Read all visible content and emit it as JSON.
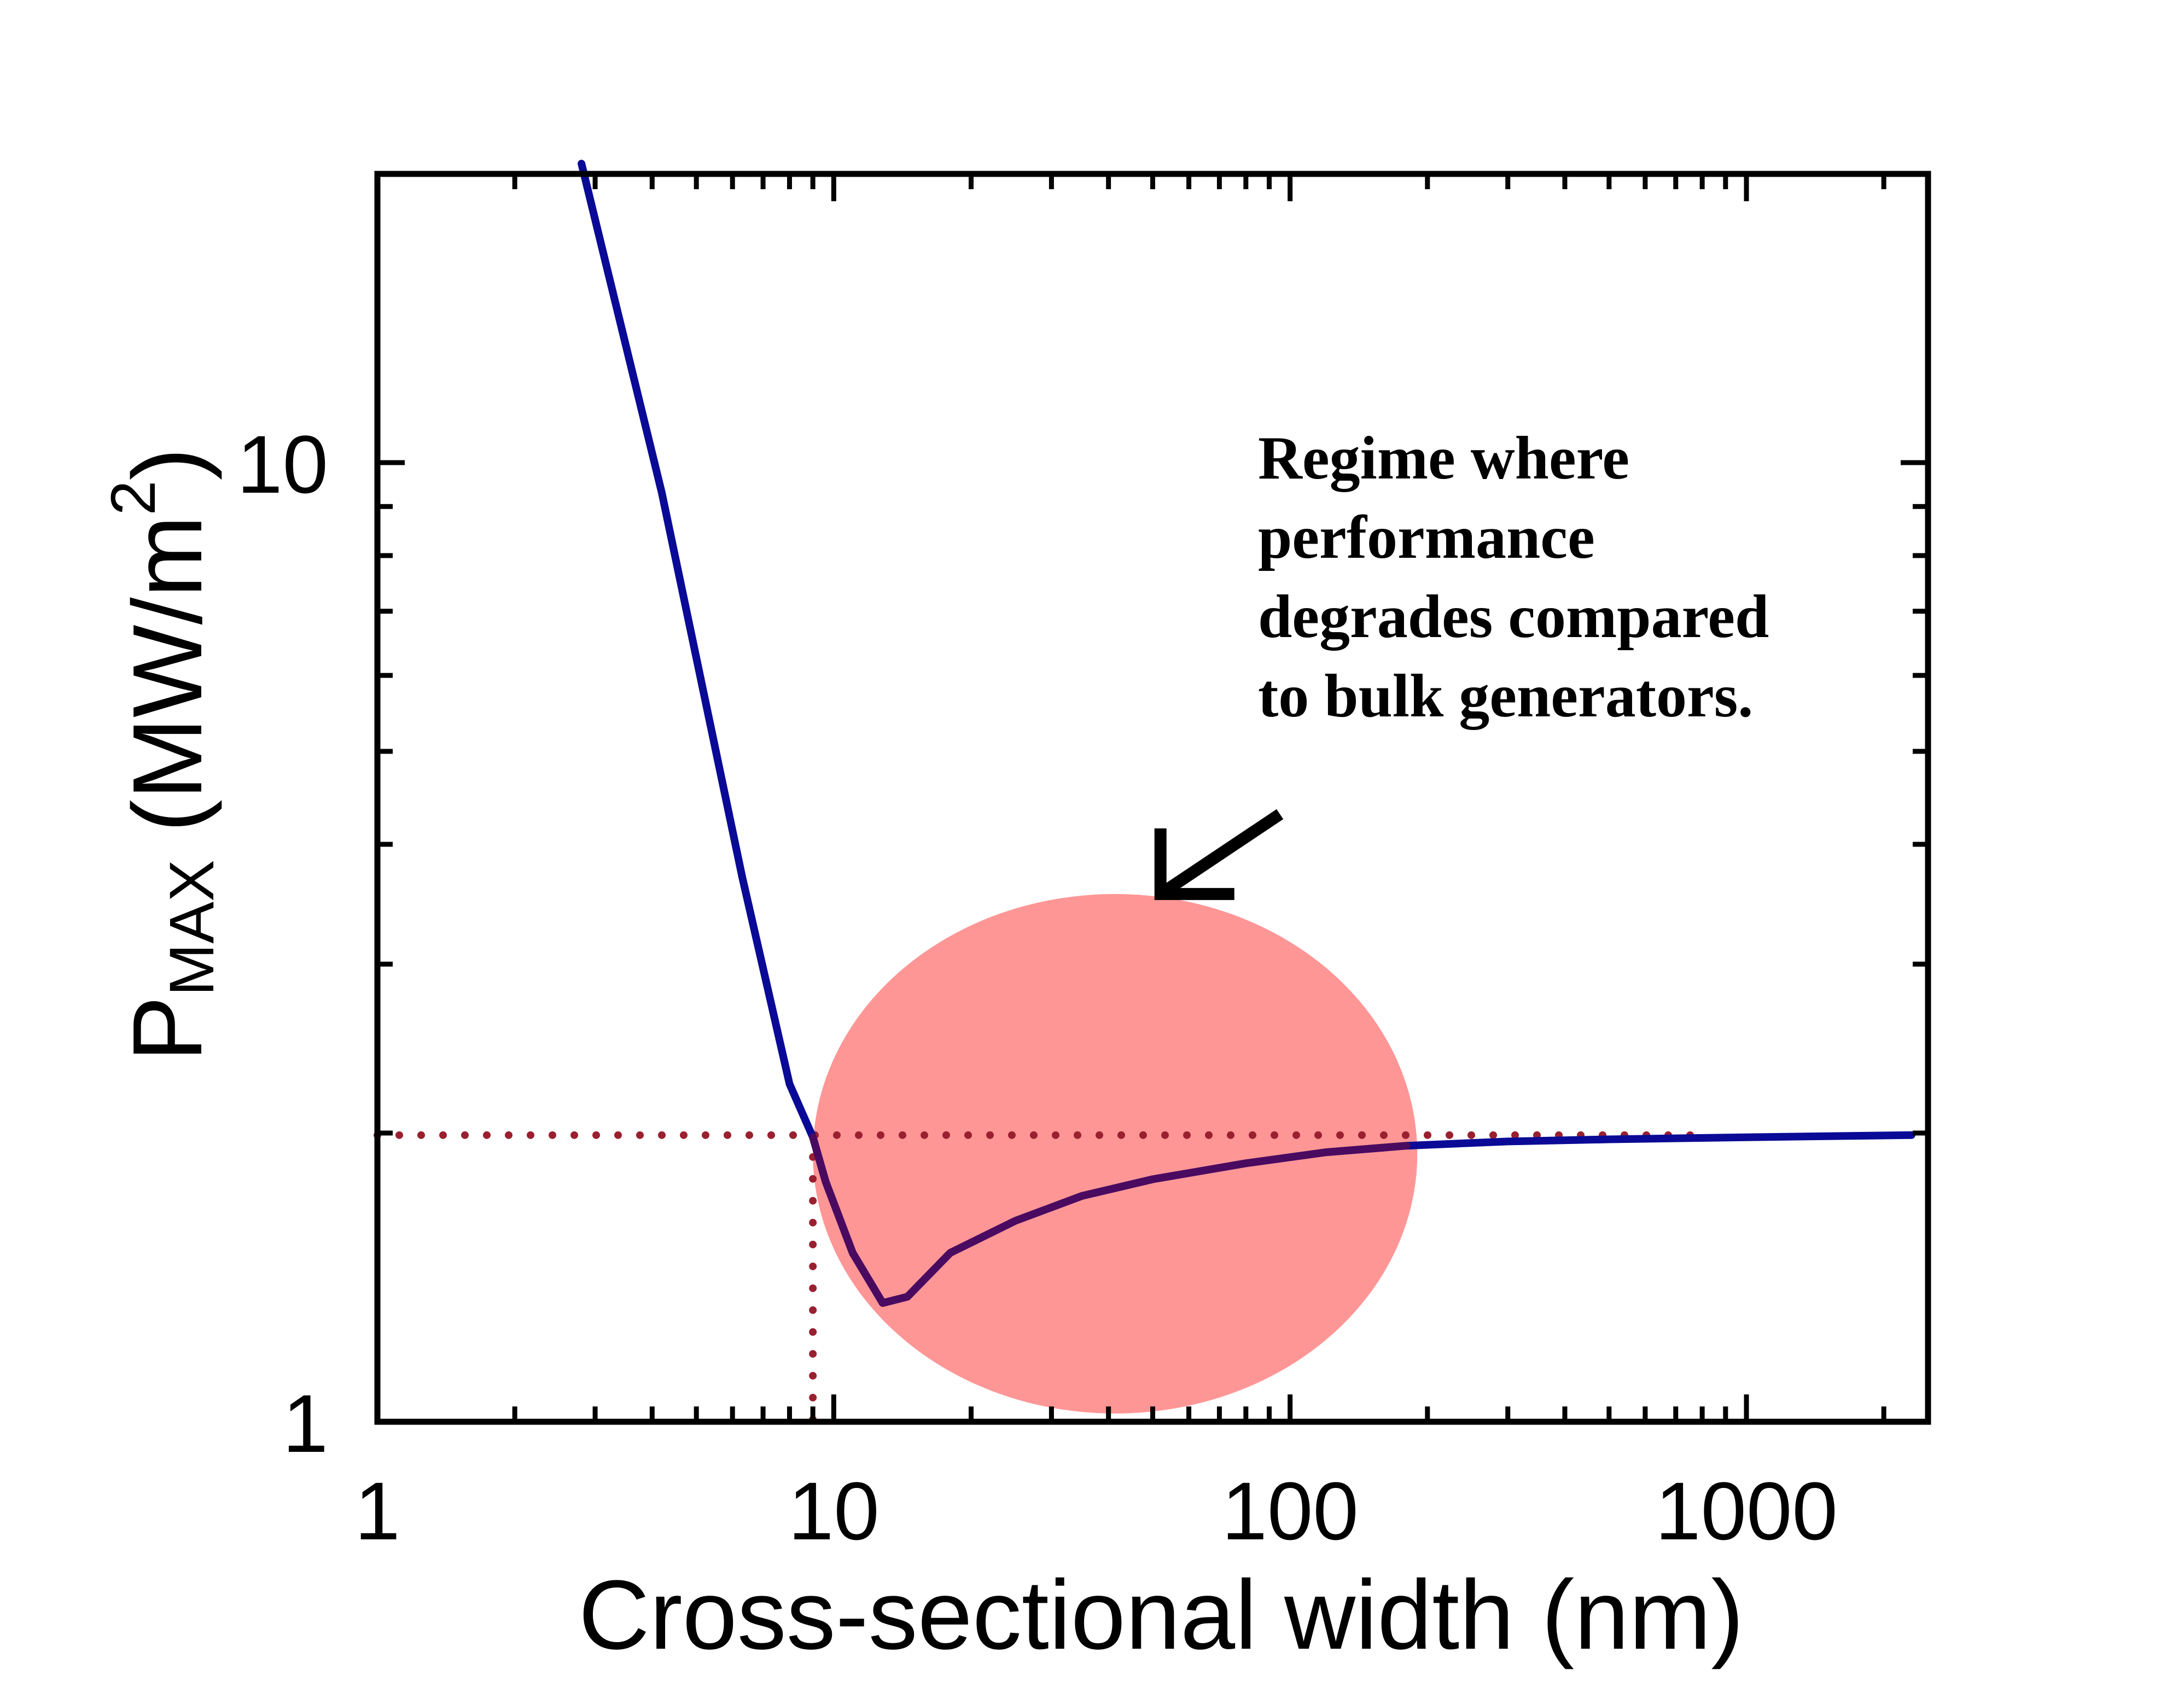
{
  "chart_data": {
    "type": "line",
    "title": "",
    "xlabel": "Cross-sectional width (nm)",
    "ylabel": {
      "main": "P",
      "subscript": "MAX",
      "units_open": " (MW/m",
      "units_sup": "2",
      "units_close": ")"
    },
    "x_scale": "log",
    "y_scale": "log",
    "xlim": [
      1,
      2500
    ],
    "ylim": [
      1,
      20
    ],
    "x_ticks": [
      {
        "value": 1,
        "label": "1"
      },
      {
        "value": 10,
        "label": "10"
      },
      {
        "value": 100,
        "label": "100"
      },
      {
        "value": 1000,
        "label": "1000"
      }
    ],
    "y_ticks": [
      {
        "value": 1,
        "label": "1"
      },
      {
        "value": 10,
        "label": "10"
      }
    ],
    "series": [
      {
        "name": "P_MAX",
        "color": "#0a0a96",
        "x": [
          2.8,
          4.2,
          6.3,
          8.0,
          9.0,
          9.6,
          11.0,
          12.8,
          14.5,
          18.0,
          25.0,
          35.0,
          50.0,
          80.0,
          120.0,
          180.0,
          300.0,
          500.0,
          1000.0,
          2300.0
        ],
        "y": [
          20.5,
          9.3,
          3.7,
          2.25,
          1.98,
          1.78,
          1.5,
          1.33,
          1.35,
          1.5,
          1.62,
          1.72,
          1.79,
          1.86,
          1.91,
          1.94,
          1.96,
          1.97,
          1.98,
          1.99
        ]
      }
    ],
    "reference_lines": {
      "horizontal_y": 1.99,
      "vertical_x": 9.0,
      "color": "#9a2030"
    },
    "highlight_region": {
      "color": "#ff9696",
      "x_range": [
        9.0,
        190.0
      ],
      "y_range": [
        1.02,
        3.55
      ]
    },
    "annotation": {
      "lines": [
        "Regime where",
        "performance",
        "degrades compared",
        "to bulk generators."
      ],
      "arrow_from": {
        "x": 95,
        "y": 4.3
      },
      "arrow_to": {
        "x": 52,
        "y": 3.55
      }
    }
  }
}
